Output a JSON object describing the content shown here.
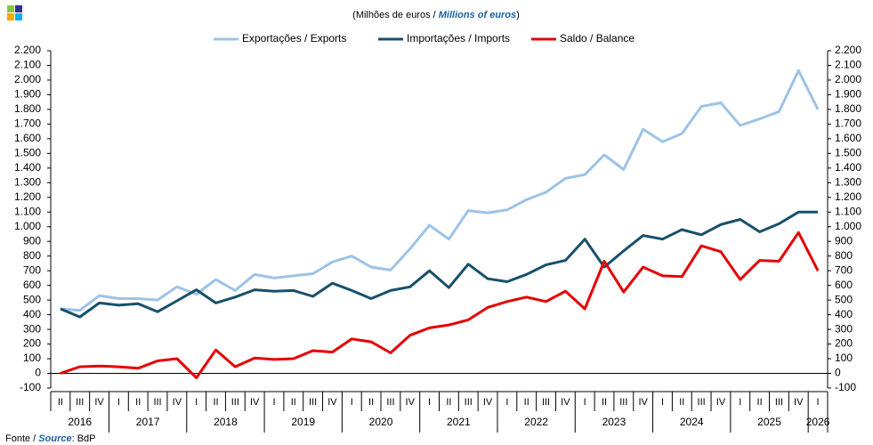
{
  "chart_data": {
    "type": "line",
    "subtitle": [
      "(Milhões de euros / ",
      "Millions of euros",
      ")"
    ],
    "source": [
      "Fonte / ",
      "Source",
      ": BdP"
    ],
    "categories": [
      "II",
      "III",
      "IV",
      "I",
      "II",
      "III",
      "IV",
      "I",
      "II",
      "III",
      "IV",
      "I",
      "II",
      "III",
      "IV",
      "I",
      "II",
      "III",
      "IV",
      "I",
      "II",
      "III",
      "IV",
      "I",
      "II",
      "III",
      "IV",
      "I",
      "II",
      "III",
      "IV",
      "I",
      "II",
      "III",
      "IV",
      "I",
      "II",
      "III",
      "IV",
      "I"
    ],
    "years": [
      "2016",
      "2017",
      "2018",
      "2019",
      "2020",
      "2021",
      "2022",
      "2023",
      "2024",
      "2025",
      "2026"
    ],
    "series": [
      {
        "name": "Exportações / Exports",
        "color": "#9dc3e6",
        "values": [
          440,
          430,
          530,
          510,
          510,
          500,
          590,
          540,
          640,
          565,
          675,
          650,
          665,
          680,
          760,
          800,
          725,
          705,
          850,
          1010,
          915,
          1110,
          1095,
          1115,
          1185,
          1235,
          1330,
          1355,
          1490,
          1390,
          1665,
          1580,
          1635,
          1820,
          1845,
          1690,
          1735,
          1785,
          2065,
          1800
        ]
      },
      {
        "name": "Importações / Imports",
        "color": "#17506b",
        "values": [
          440,
          385,
          480,
          465,
          475,
          420,
          495,
          570,
          480,
          520,
          570,
          560,
          565,
          525,
          615,
          565,
          510,
          565,
          590,
          700,
          585,
          745,
          645,
          625,
          675,
          740,
          770,
          915,
          725,
          835,
          940,
          915,
          980,
          945,
          1015,
          1050,
          965,
          1020,
          1100,
          1100
        ]
      },
      {
        "name": "Saldo / Balance",
        "color": "#e60000",
        "values": [
          0,
          45,
          50,
          45,
          35,
          85,
          100,
          -30,
          160,
          45,
          105,
          95,
          100,
          155,
          145,
          235,
          215,
          140,
          260,
          310,
          330,
          365,
          450,
          490,
          520,
          490,
          560,
          440,
          765,
          555,
          725,
          665,
          660,
          870,
          830,
          640,
          770,
          765,
          960,
          700
        ]
      }
    ],
    "ylim": [
      -100,
      2200
    ],
    "yticks": [
      {
        "value": -100,
        "label": "-100"
      },
      0,
      100,
      200,
      300,
      400,
      500,
      600,
      700,
      800,
      900,
      {
        "value": 1000,
        "label": "1.000"
      },
      {
        "value": 1100,
        "label": "1.100"
      },
      {
        "value": 1200,
        "label": "1.200"
      },
      {
        "value": 1300,
        "label": "1.300"
      },
      {
        "value": 1400,
        "label": "1.400"
      },
      {
        "value": 1500,
        "label": "1.500"
      },
      {
        "value": 1600,
        "label": "1.600"
      },
      {
        "value": 1700,
        "label": "1.700"
      },
      {
        "value": 1800,
        "label": "1.800"
      },
      {
        "value": 1900,
        "label": "1.900"
      },
      {
        "value": 2000,
        "label": "2.000"
      },
      {
        "value": 2100,
        "label": "2.100"
      },
      {
        "value": 2200,
        "label": "2.200"
      }
    ],
    "y2lim": [
      -100,
      2200
    ],
    "y2ticks": [
      {
        "value": -100,
        "label": "-100"
      },
      0,
      100,
      200,
      300,
      400,
      500,
      600,
      700,
      800,
      900,
      {
        "value": 1000,
        "label": "1.000"
      },
      {
        "value": 1100,
        "label": "1.100"
      },
      {
        "value": 1200,
        "label": "1.200"
      },
      {
        "value": 1300,
        "label": "1.300"
      },
      {
        "value": 1400,
        "label": "1.400"
      },
      {
        "value": 1500,
        "label": "1.500"
      },
      {
        "value": 1600,
        "label": "1.600"
      },
      {
        "value": 1700,
        "label": "1.700"
      },
      {
        "value": 1800,
        "label": "1.800"
      },
      {
        "value": 1900,
        "label": "1.900"
      },
      {
        "value": 2000,
        "label": "2.000"
      },
      {
        "value": 2100,
        "label": "2.100"
      },
      {
        "value": 2200,
        "label": "2.200"
      }
    ],
    "grid": false,
    "legend": "top"
  }
}
